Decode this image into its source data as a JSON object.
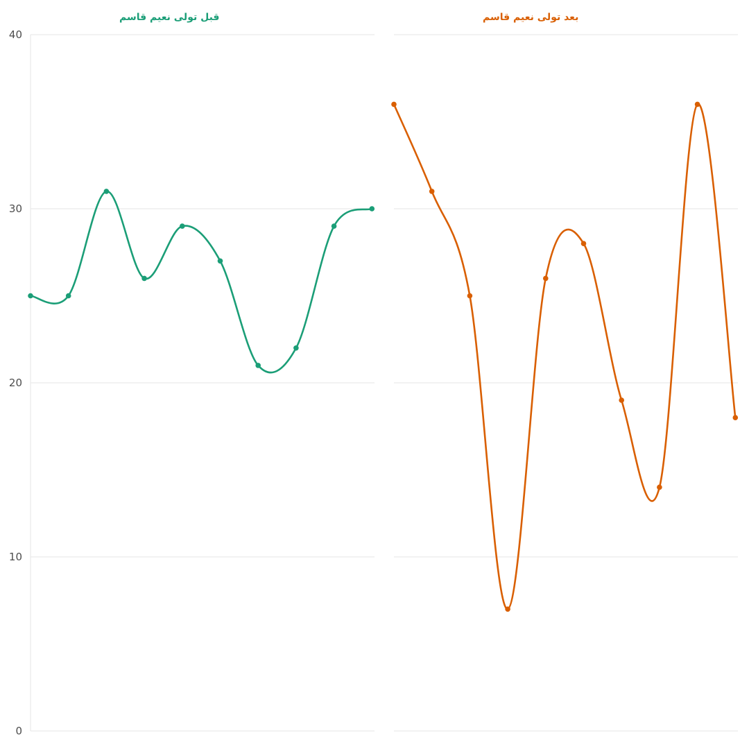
{
  "chart_data": {
    "type": "line",
    "smooth": true,
    "grid": true,
    "ylim": [
      0,
      40
    ],
    "y_ticks": [
      0,
      10,
      20,
      30,
      40
    ],
    "panels": [
      {
        "title": "قبل تولی نعیم قاسم",
        "color": "#1b9e77",
        "values": [
          25,
          25,
          31,
          26,
          29,
          27,
          21,
          22,
          29,
          30
        ]
      },
      {
        "title": "بعد تولی نعیم قاسم",
        "color": "#d95f02",
        "values": [
          36,
          31,
          25,
          7,
          26,
          28,
          19,
          14,
          36,
          18
        ]
      }
    ]
  }
}
